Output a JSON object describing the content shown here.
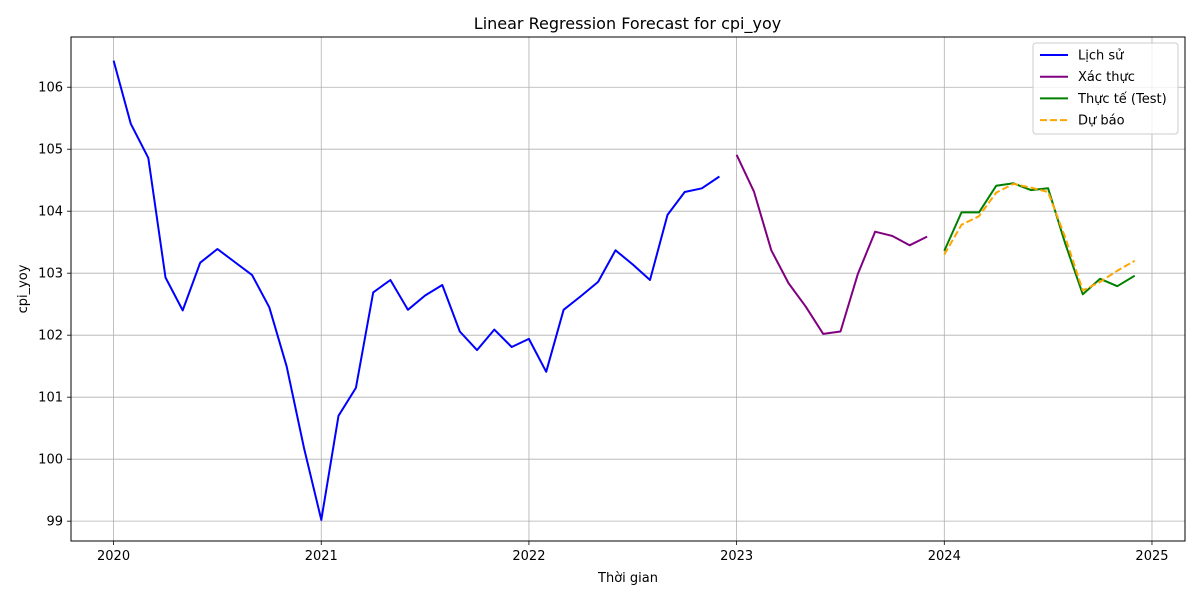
{
  "chart_data": {
    "type": "line",
    "title": "Linear Regression Forecast for cpi_yoy",
    "xlabel": "Thời gian",
    "ylabel": "cpi_yoy",
    "xlim": [
      2019.795,
      2025.159
    ],
    "ylim": [
      98.68,
      106.81
    ],
    "x_ticks": [
      2020,
      2021,
      2022,
      2023,
      2024,
      2025
    ],
    "x_tick_labels": [
      "2020",
      "2021",
      "2022",
      "2023",
      "2024",
      "2025"
    ],
    "y_ticks": [
      99,
      100,
      101,
      102,
      103,
      104,
      105,
      106
    ],
    "y_tick_labels": [
      "99",
      "100",
      "101",
      "102",
      "103",
      "104",
      "105",
      "106"
    ],
    "grid": true,
    "legend_position": "top-right",
    "series": [
      {
        "name": "Lịch sử",
        "color": "#0000ff",
        "dash": "solid",
        "x": [
          2020.0,
          2020.083,
          2020.167,
          2020.25,
          2020.333,
          2020.417,
          2020.5,
          2020.583,
          2020.667,
          2020.75,
          2020.833,
          2020.917,
          2021.0,
          2021.083,
          2021.167,
          2021.25,
          2021.333,
          2021.417,
          2021.5,
          2021.583,
          2021.667,
          2021.75,
          2021.833,
          2021.917,
          2022.0,
          2022.083,
          2022.167,
          2022.25,
          2022.333,
          2022.417,
          2022.5,
          2022.583,
          2022.667,
          2022.75,
          2022.833,
          2022.917
        ],
        "values": [
          106.43,
          105.41,
          104.86,
          102.93,
          102.4,
          103.17,
          103.39,
          103.18,
          102.97,
          102.45,
          101.5,
          100.18,
          99.02,
          100.7,
          101.15,
          102.69,
          102.89,
          102.41,
          102.64,
          102.81,
          102.06,
          101.76,
          102.09,
          101.81,
          101.94,
          101.41,
          102.41,
          102.63,
          102.86,
          103.37,
          103.14,
          102.89,
          103.94,
          104.31,
          104.37,
          104.56
        ]
      },
      {
        "name": "Xác thực",
        "color": "#800080",
        "dash": "solid",
        "x": [
          2023.0,
          2023.083,
          2023.167,
          2023.25,
          2023.333,
          2023.417,
          2023.5,
          2023.583,
          2023.667,
          2023.75,
          2023.833,
          2023.917
        ],
        "values": [
          104.91,
          104.32,
          103.37,
          102.84,
          102.46,
          102.02,
          102.06,
          102.98,
          103.67,
          103.6,
          103.45,
          103.59
        ]
      },
      {
        "name": "Thực tế (Test)",
        "color": "#008000",
        "dash": "solid",
        "x": [
          2024.0,
          2024.083,
          2024.167,
          2024.25,
          2024.333,
          2024.417,
          2024.5,
          2024.583,
          2024.667,
          2024.75,
          2024.833,
          2024.917
        ],
        "values": [
          103.36,
          103.98,
          103.98,
          104.41,
          104.45,
          104.34,
          104.37,
          103.47,
          102.66,
          102.91,
          102.79,
          102.96
        ]
      },
      {
        "name": "Dự báo",
        "color": "#ffa500",
        "dash": "dashed",
        "x": [
          2024.0,
          2024.083,
          2024.167,
          2024.25,
          2024.333,
          2024.417,
          2024.5,
          2024.583,
          2024.667,
          2024.75,
          2024.833,
          2024.917
        ],
        "values": [
          103.3,
          103.78,
          103.92,
          104.3,
          104.44,
          104.38,
          104.31,
          103.57,
          102.72,
          102.86,
          103.04,
          103.2
        ]
      }
    ]
  }
}
